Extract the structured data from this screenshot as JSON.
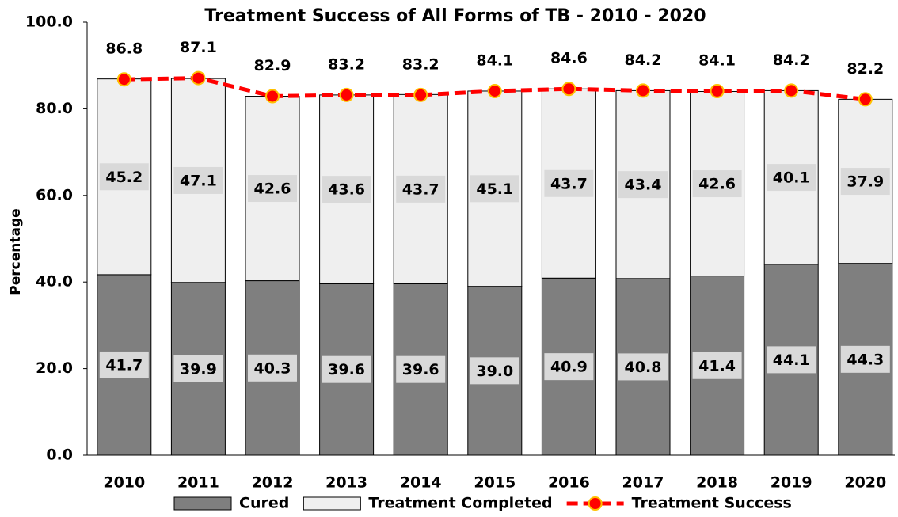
{
  "chart_data": {
    "type": "stacked-bar-line",
    "title": "Treatment Success of All Forms of TB - 2010 - 2020",
    "y_label": "Percentage",
    "categories": [
      "2010",
      "2011",
      "2012",
      "2013",
      "2014",
      "2015",
      "2016",
      "2017",
      "2018",
      "2019",
      "2020"
    ],
    "series": [
      {
        "name": "Cured",
        "color": "#7f7f7f",
        "kind": "bar",
        "values": [
          41.7,
          39.9,
          40.3,
          39.6,
          39.6,
          39.0,
          40.9,
          40.8,
          41.4,
          44.1,
          44.3
        ],
        "value_labels": [
          "41.7",
          "39.9",
          "40.3",
          "39.6",
          "39.6",
          "39.0",
          "40.9",
          "40.8",
          "41.4",
          "44.1",
          "44.3"
        ]
      },
      {
        "name": "Treatment Completed",
        "color": "#efefef",
        "kind": "bar",
        "values": [
          45.2,
          47.1,
          42.6,
          43.6,
          43.7,
          45.1,
          43.7,
          43.4,
          42.6,
          40.1,
          37.9
        ]
      },
      {
        "name": "Treatment Success",
        "color": "#ff0000",
        "kind": "line",
        "values": [
          86.8,
          87.1,
          82.9,
          83.2,
          83.2,
          84.1,
          84.6,
          84.2,
          84.1,
          84.2,
          82.2
        ]
      }
    ],
    "ylim": [
      0,
      100
    ],
    "yticks": [
      {
        "value": 0,
        "label": "0.0"
      },
      {
        "value": 20,
        "label": "20.0"
      },
      {
        "value": 40,
        "label": "40.0"
      },
      {
        "value": 60,
        "label": "60.0"
      },
      {
        "value": 80,
        "label": "80.0"
      },
      {
        "value": 100,
        "label": "100.0"
      }
    ],
    "legend": "bottom"
  }
}
